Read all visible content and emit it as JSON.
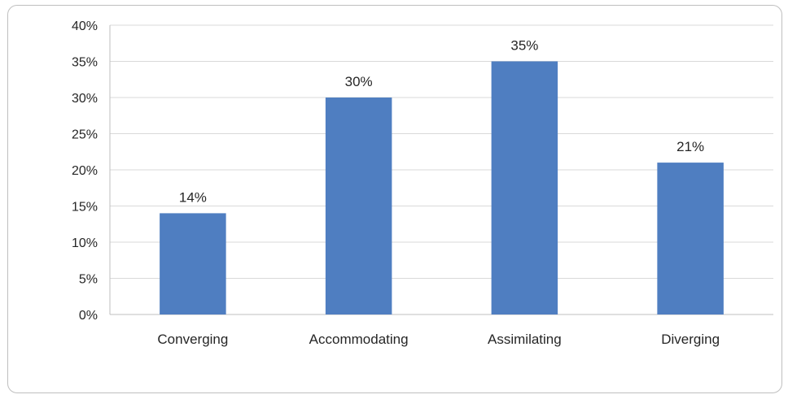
{
  "chart_data": {
    "type": "bar",
    "title": "",
    "xlabel": "",
    "ylabel": "",
    "categories": [
      "Converging",
      "Accommodating",
      "Assimilating",
      "Diverging"
    ],
    "values": [
      14,
      30,
      35,
      21
    ],
    "value_labels": [
      "14%",
      "30%",
      "35%",
      "21%"
    ],
    "y_ticks": [
      "0%",
      "5%",
      "10%",
      "15%",
      "20%",
      "25%",
      "30%",
      "35%",
      "40%"
    ],
    "ylim": [
      0,
      40
    ],
    "grid": true,
    "legend": "none",
    "bar_color": "#4f7ec1",
    "grid_color": "#d9d9d9"
  }
}
